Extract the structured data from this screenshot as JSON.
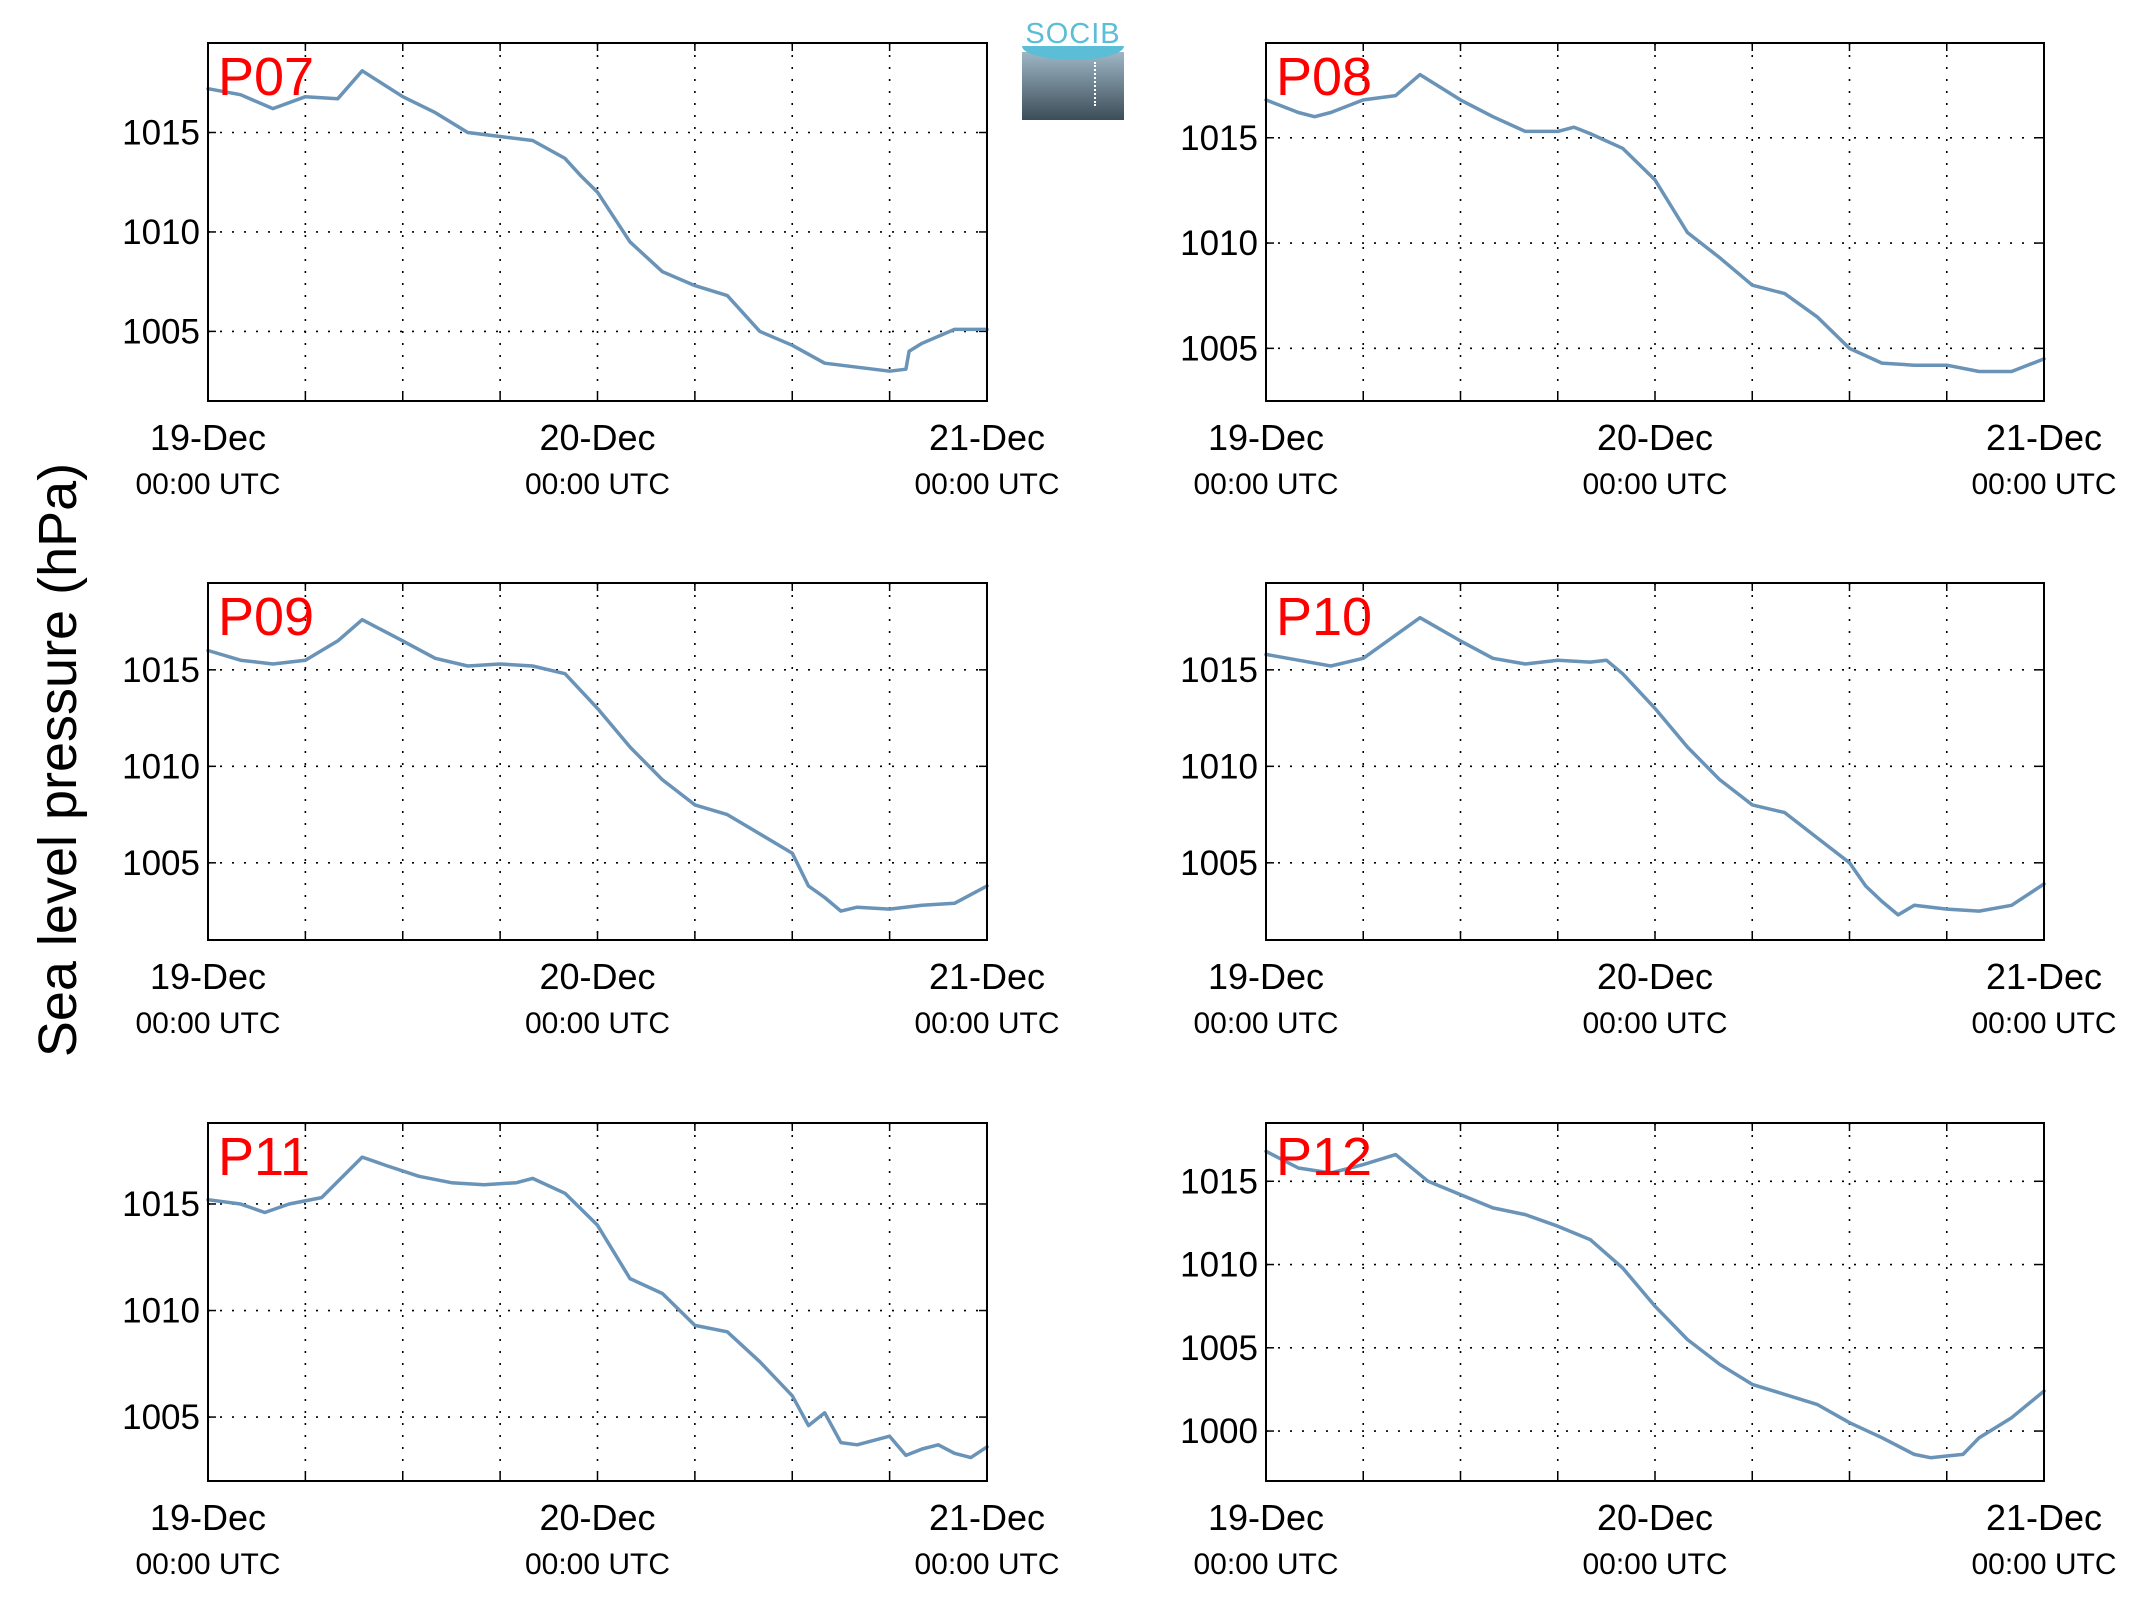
{
  "figure": {
    "ylabel": "Sea level pressure (hPa)",
    "logo_text": "SOCIB",
    "line_color": "#6a93b8",
    "label_color": "#ff0000"
  },
  "chart_data": [
    {
      "type": "line",
      "title": "P07",
      "ylim": [
        1001.5,
        1019.5
      ],
      "yticks": [
        1005,
        1010,
        1015
      ],
      "xlim": [
        0,
        48
      ],
      "xtick_labels": [
        [
          "19-Dec",
          "00:00 UTC"
        ],
        [
          "20-Dec",
          "00:00 UTC"
        ],
        [
          "21-Dec",
          "00:00 UTC"
        ]
      ],
      "x": [
        0,
        2,
        4,
        6,
        8,
        9.5,
        12,
        14,
        16,
        18,
        20,
        22,
        23,
        24,
        26,
        28,
        30,
        32,
        34,
        36,
        38,
        40,
        42,
        43,
        43.2,
        44,
        46,
        48
      ],
      "values": [
        1017.2,
        1016.9,
        1016.2,
        1016.8,
        1016.7,
        1018.1,
        1016.8,
        1016.0,
        1015.0,
        1014.8,
        1014.6,
        1013.7,
        1012.8,
        1012.0,
        1009.5,
        1008.0,
        1007.3,
        1006.8,
        1005.0,
        1004.3,
        1003.4,
        1003.2,
        1003.0,
        1003.1,
        1004.0,
        1004.4,
        1005.1,
        1005.1
      ],
      "grid": true
    },
    {
      "type": "line",
      "title": "P08",
      "ylim": [
        1002.5,
        1019.5
      ],
      "yticks": [
        1005,
        1010,
        1015
      ],
      "xlim": [
        0,
        48
      ],
      "xtick_labels": [
        [
          "19-Dec",
          "00:00 UTC"
        ],
        [
          "20-Dec",
          "00:00 UTC"
        ],
        [
          "21-Dec",
          "00:00 UTC"
        ]
      ],
      "x": [
        0,
        2,
        3,
        4,
        6,
        8,
        9.5,
        12,
        14,
        16,
        18,
        19,
        20,
        22,
        24,
        26,
        28,
        30,
        32,
        34,
        36,
        38,
        40,
        42,
        44,
        46,
        48
      ],
      "values": [
        1016.8,
        1016.2,
        1016.0,
        1016.2,
        1016.8,
        1017.0,
        1018.0,
        1016.8,
        1016.0,
        1015.3,
        1015.3,
        1015.5,
        1015.2,
        1014.5,
        1013.0,
        1010.5,
        1009.3,
        1008.0,
        1007.6,
        1006.5,
        1005.0,
        1004.3,
        1004.2,
        1004.2,
        1003.9,
        1003.9,
        1004.5
      ],
      "grid": true
    },
    {
      "type": "line",
      "title": "P09",
      "ylim": [
        1001.0,
        1019.5
      ],
      "yticks": [
        1005,
        1010,
        1015
      ],
      "xlim": [
        0,
        48
      ],
      "xtick_labels": [
        [
          "19-Dec",
          "00:00 UTC"
        ],
        [
          "20-Dec",
          "00:00 UTC"
        ],
        [
          "21-Dec",
          "00:00 UTC"
        ]
      ],
      "x": [
        0,
        2,
        4,
        6,
        8,
        9.5,
        12,
        14,
        16,
        18,
        20,
        22,
        24,
        26,
        28,
        30,
        32,
        34,
        36,
        37,
        38,
        39,
        40,
        42,
        44,
        46,
        48
      ],
      "values": [
        1016.0,
        1015.5,
        1015.3,
        1015.5,
        1016.5,
        1017.6,
        1016.5,
        1015.6,
        1015.2,
        1015.3,
        1015.2,
        1014.8,
        1013.0,
        1011.0,
        1009.3,
        1008.0,
        1007.5,
        1006.5,
        1005.5,
        1003.8,
        1003.2,
        1002.5,
        1002.7,
        1002.6,
        1002.8,
        1002.9,
        1003.8
      ],
      "grid": true
    },
    {
      "type": "line",
      "title": "P10",
      "ylim": [
        1001.0,
        1019.5
      ],
      "yticks": [
        1005,
        1010,
        1015
      ],
      "xlim": [
        0,
        48
      ],
      "xtick_labels": [
        [
          "19-Dec",
          "00:00 UTC"
        ],
        [
          "20-Dec",
          "00:00 UTC"
        ],
        [
          "21-Dec",
          "00:00 UTC"
        ]
      ],
      "x": [
        0,
        2,
        4,
        6,
        8,
        9.5,
        12,
        14,
        16,
        18,
        20,
        21,
        22,
        24,
        26,
        28,
        30,
        32,
        34,
        36,
        37,
        38,
        39,
        40,
        42,
        44,
        46,
        48
      ],
      "values": [
        1015.8,
        1015.5,
        1015.2,
        1015.6,
        1016.8,
        1017.7,
        1016.5,
        1015.6,
        1015.3,
        1015.5,
        1015.4,
        1015.5,
        1014.8,
        1013.0,
        1011.0,
        1009.3,
        1008.0,
        1007.6,
        1006.3,
        1005.0,
        1003.8,
        1003.0,
        1002.3,
        1002.8,
        1002.6,
        1002.5,
        1002.8,
        1003.9
      ],
      "grid": true
    },
    {
      "type": "line",
      "title": "P11",
      "ylim": [
        1002.0,
        1018.8
      ],
      "yticks": [
        1005,
        1010,
        1015
      ],
      "xlim": [
        0,
        48
      ],
      "xtick_labels": [
        [
          "19-Dec",
          "00:00 UTC"
        ],
        [
          "20-Dec",
          "00:00 UTC"
        ],
        [
          "21-Dec",
          "00:00 UTC"
        ]
      ],
      "x": [
        0,
        2,
        3.5,
        5,
        7,
        9.5,
        11,
        13,
        15,
        17,
        19,
        20,
        22,
        24,
        26,
        28,
        30,
        32,
        34,
        36,
        37,
        38,
        39,
        40,
        42,
        43,
        44,
        45,
        46,
        47,
        48
      ],
      "values": [
        1015.2,
        1015.0,
        1014.6,
        1015.0,
        1015.3,
        1017.2,
        1016.8,
        1016.3,
        1016.0,
        1015.9,
        1016.0,
        1016.2,
        1015.5,
        1014.0,
        1011.5,
        1010.8,
        1009.3,
        1009.0,
        1007.6,
        1006.0,
        1004.6,
        1005.2,
        1003.8,
        1003.7,
        1004.1,
        1003.2,
        1003.5,
        1003.7,
        1003.3,
        1003.1,
        1003.6
      ],
      "grid": true
    },
    {
      "type": "line",
      "title": "P12",
      "ylim": [
        997.0,
        1018.5
      ],
      "yticks": [
        1000,
        1005,
        1010,
        1015
      ],
      "xlim": [
        0,
        48
      ],
      "xtick_labels": [
        [
          "19-Dec",
          "00:00 UTC"
        ],
        [
          "20-Dec",
          "00:00 UTC"
        ],
        [
          "21-Dec",
          "00:00 UTC"
        ]
      ],
      "x": [
        0,
        2,
        4,
        6,
        8,
        10,
        12,
        14,
        16,
        18,
        20,
        22,
        24,
        26,
        28,
        30,
        32,
        34,
        36,
        38,
        40,
        41,
        42,
        43,
        44,
        46,
        48
      ],
      "values": [
        1016.8,
        1015.8,
        1015.5,
        1016.0,
        1016.6,
        1015.0,
        1014.2,
        1013.4,
        1013.0,
        1012.3,
        1011.5,
        1009.8,
        1007.5,
        1005.5,
        1004.0,
        1002.8,
        1002.2,
        1001.6,
        1000.5,
        999.6,
        998.6,
        998.4,
        998.5,
        998.6,
        999.6,
        1000.8,
        1002.4
      ],
      "grid": true
    }
  ]
}
